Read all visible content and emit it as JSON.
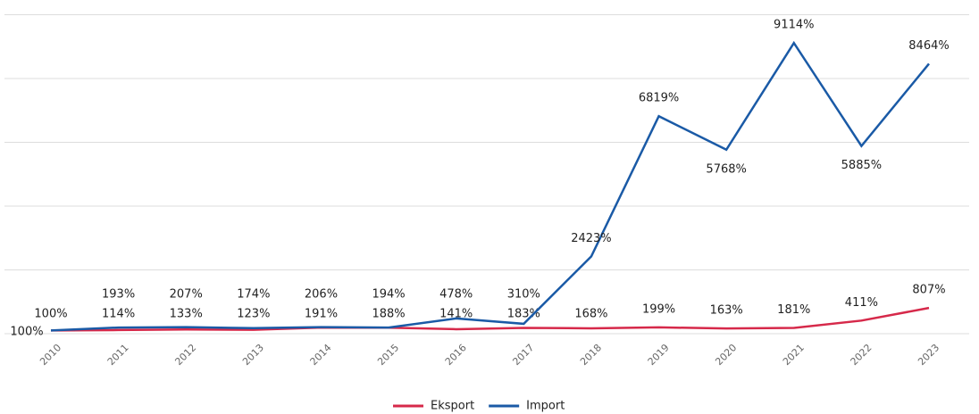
{
  "chart_data": {
    "type": "line",
    "categories": [
      "2010",
      "2011",
      "2012",
      "2013",
      "2014",
      "2015",
      "2016",
      "2017",
      "2018",
      "2019",
      "2020",
      "2021",
      "2022",
      "2023"
    ],
    "series": [
      {
        "name": "Eksport",
        "color": "#d6294a",
        "values": [
          100,
          114,
          133,
          123,
          191,
          188,
          141,
          183,
          168,
          199,
          163,
          181,
          411,
          807
        ],
        "value_labels": [
          "100%",
          "114%",
          "133%",
          "123%",
          "191%",
          "188%",
          "141%",
          "183%",
          "168%",
          "199%",
          "163%",
          "181%",
          "411%",
          "807%"
        ]
      },
      {
        "name": "Import",
        "color": "#1a5aa6",
        "values": [
          100,
          193,
          207,
          174,
          206,
          194,
          478,
          310,
          2423,
          6819,
          5768,
          9114,
          5885,
          8464
        ],
        "value_labels": [
          "100%",
          "193%",
          "207%",
          "174%",
          "206%",
          "194%",
          "478%",
          "310%",
          "2423%",
          "6819%",
          "5768%",
          "9114%",
          "5885%",
          "8464%"
        ]
      }
    ],
    "ylim": [
      0,
      10000
    ],
    "yticks": [
      0,
      2000,
      4000,
      6000,
      8000,
      10000
    ],
    "grid": true,
    "legend": "bottom"
  }
}
